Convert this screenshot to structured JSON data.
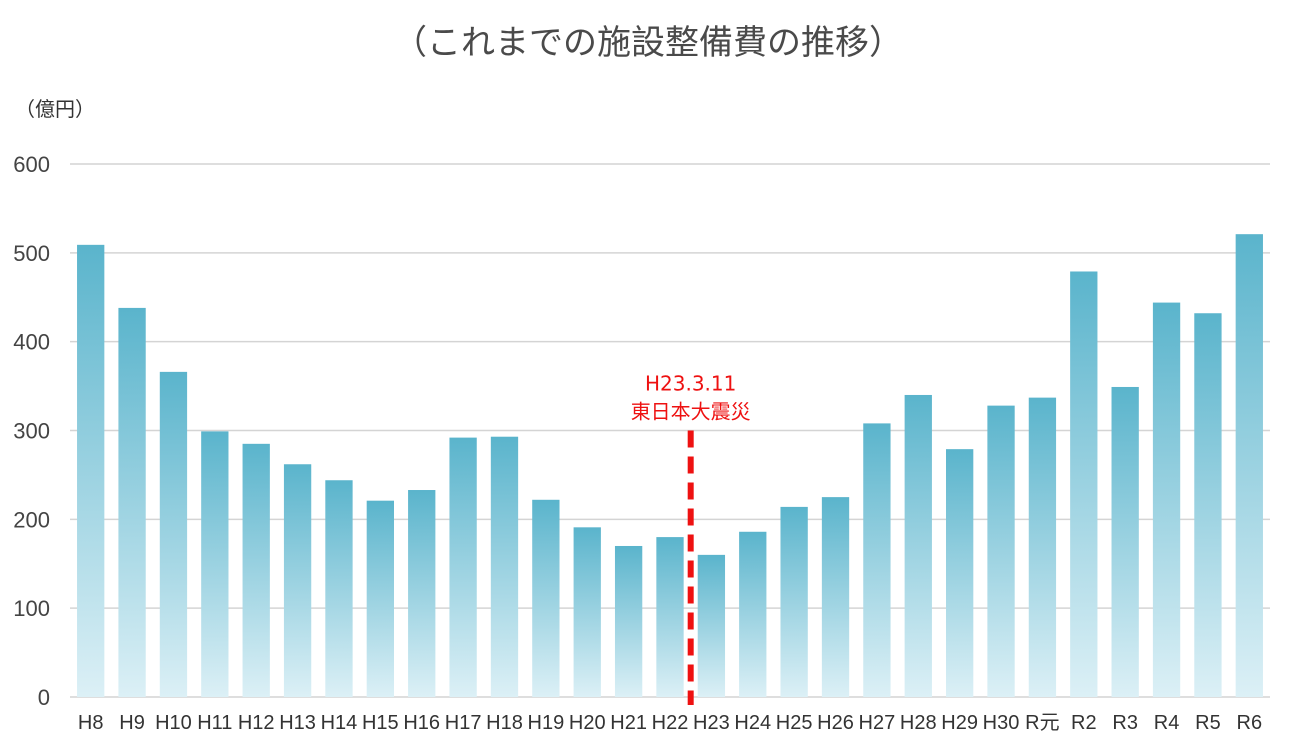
{
  "chart_data": {
    "type": "bar",
    "title": "（これまでの施設整備費の推移）",
    "unit_label": "（億円）",
    "categories": [
      "H8",
      "H9",
      "H10",
      "H11",
      "H12",
      "H13",
      "H14",
      "H15",
      "H16",
      "H17",
      "H18",
      "H19",
      "H20",
      "H21",
      "H22",
      "H23",
      "H24",
      "H25",
      "H26",
      "H27",
      "H28",
      "H29",
      "H30",
      "R元",
      "R2",
      "R3",
      "R4",
      "R5",
      "R6"
    ],
    "values": [
      509,
      438,
      366,
      299,
      285,
      262,
      244,
      221,
      233,
      292,
      293,
      222,
      191,
      170,
      180,
      160,
      186,
      214,
      225,
      308,
      340,
      279,
      328,
      337,
      479,
      349,
      444,
      432,
      521
    ],
    "ylim": [
      0,
      600
    ],
    "yticks": [
      0,
      100,
      200,
      300,
      400,
      500,
      600
    ],
    "grid": true,
    "bar_color_top": "#5ab4cc",
    "bar_color_bottom": "#dcf0f6",
    "gridline_color": "#d4d4d4",
    "annotation": {
      "line1": "H23.3.11",
      "line2": "東日本大震災",
      "between": [
        "H22",
        "H23"
      ],
      "color": "#ee1111",
      "top_value": 300
    }
  }
}
